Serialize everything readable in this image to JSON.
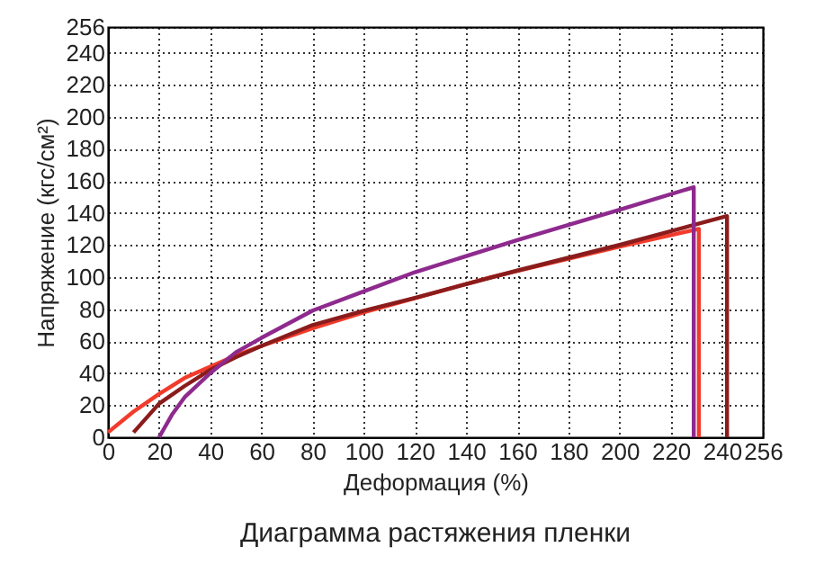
{
  "chart_data": {
    "type": "line",
    "title": "Диаграмма растяжения пленки",
    "xlabel": "Деформация (%)",
    "ylabel": "Напряжение (кгс/см²)",
    "xlim": [
      0,
      256
    ],
    "ylim": [
      0,
      256
    ],
    "xticks": [
      0,
      20,
      40,
      60,
      80,
      100,
      120,
      140,
      160,
      180,
      200,
      220,
      240,
      256
    ],
    "yticks": [
      0,
      20,
      40,
      60,
      80,
      100,
      120,
      140,
      160,
      180,
      200,
      220,
      240,
      256
    ],
    "grid": true,
    "marker": "none",
    "line_style": "solid",
    "series": [
      {
        "color": "#f23b2b",
        "x": [
          0,
          10,
          20,
          30,
          40,
          50,
          60,
          80,
          100,
          150,
          200,
          231,
          231
        ],
        "values": [
          3,
          16,
          27,
          37,
          44,
          51,
          57,
          68,
          78,
          100,
          119,
          130,
          0
        ]
      },
      {
        "color": "#8b1c1c",
        "x": [
          10,
          20,
          30,
          40,
          50,
          60,
          80,
          100,
          120,
          160,
          200,
          242,
          242
        ],
        "values": [
          3,
          21,
          32,
          42,
          50,
          57,
          70,
          79,
          87,
          104,
          120,
          138,
          0
        ]
      },
      {
        "color": "#8e2a8e",
        "x": [
          20,
          25,
          30,
          40,
          50,
          60,
          80,
          100,
          120,
          160,
          200,
          229,
          229
        ],
        "values": [
          0,
          14,
          25,
          40,
          53,
          62,
          79,
          91,
          103,
          123,
          142,
          156,
          0
        ]
      }
    ]
  }
}
